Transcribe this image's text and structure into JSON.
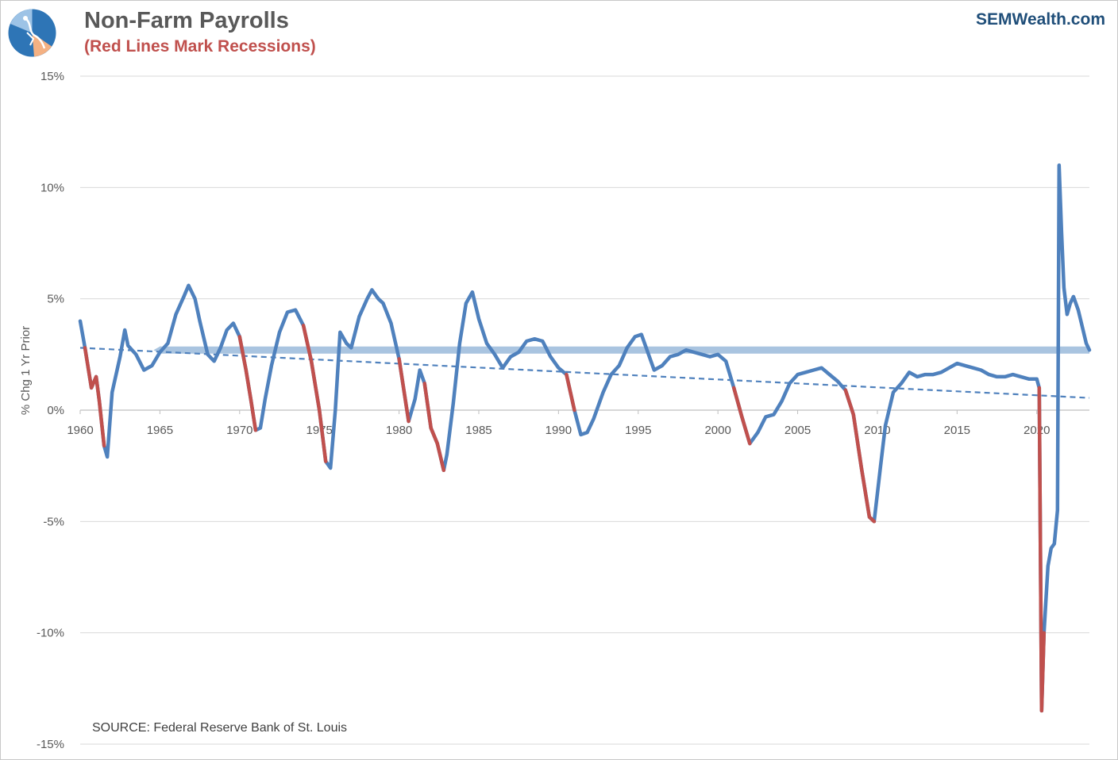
{
  "header": {
    "title": "Non-Farm Payrolls",
    "subtitle": "(Red Lines Mark Recessions)",
    "brand": "SEMWealth.com"
  },
  "colors": {
    "series": "#4f81bd",
    "recession": "#c0504d",
    "band": "#a9c4e0",
    "grid": "#d9d9d9",
    "title": "#595959",
    "brand": "#1f4e79",
    "logo_blue": "#2e75b6",
    "logo_light": "#9dc3e6",
    "logo_orange": "#f4b183"
  },
  "icons": {
    "logo": "semwealth-logo-icon"
  },
  "chart_data": {
    "type": "line",
    "ylabel": "% Chg 1 Yr Prior",
    "xlabel": "",
    "ylim": [
      -15,
      15
    ],
    "xlim": [
      1960,
      2023.3
    ],
    "y_ticks": [
      15,
      10,
      5,
      0,
      -5,
      -10,
      -15
    ],
    "y_tick_labels": [
      "15%",
      "10%",
      "5%",
      "0%",
      "-5%",
      "-10%",
      "-15%"
    ],
    "x_ticks": [
      1960,
      1965,
      1970,
      1975,
      1980,
      1985,
      1990,
      1995,
      2000,
      2005,
      2010,
      2015,
      2020
    ],
    "x_tick_labels": [
      "1960",
      "1965",
      "1970",
      "1975",
      "1980",
      "1985",
      "1990",
      "1995",
      "2000",
      "2005",
      "2010",
      "2015",
      "2020"
    ],
    "grid": "horizontal",
    "annotation": "SOURCE: Federal Reserve Bank of St. Louis",
    "series": [
      {
        "points": [
          [
            1960.0,
            4.0
          ],
          [
            1960.3,
            2.8
          ],
          [
            1960.7,
            1.0
          ],
          [
            1961.0,
            1.5
          ],
          [
            1961.2,
            0.4
          ],
          [
            1961.5,
            -1.6
          ],
          [
            1961.7,
            -2.1
          ],
          [
            1962.0,
            0.8
          ],
          [
            1962.5,
            2.4
          ],
          [
            1962.8,
            3.6
          ],
          [
            1963.0,
            2.9
          ],
          [
            1963.5,
            2.5
          ],
          [
            1964.0,
            1.8
          ],
          [
            1964.5,
            2.0
          ],
          [
            1965.0,
            2.6
          ],
          [
            1965.5,
            3.0
          ],
          [
            1966.0,
            4.3
          ],
          [
            1966.5,
            5.1
          ],
          [
            1966.8,
            5.6
          ],
          [
            1967.2,
            5.0
          ],
          [
            1967.5,
            4.0
          ],
          [
            1968.0,
            2.5
          ],
          [
            1968.4,
            2.2
          ],
          [
            1968.8,
            2.8
          ],
          [
            1969.2,
            3.6
          ],
          [
            1969.6,
            3.9
          ],
          [
            1970.0,
            3.3
          ],
          [
            1970.4,
            1.8
          ],
          [
            1970.7,
            0.5
          ],
          [
            1971.0,
            -0.9
          ],
          [
            1971.3,
            -0.8
          ],
          [
            1971.6,
            0.5
          ],
          [
            1972.0,
            2.0
          ],
          [
            1972.5,
            3.5
          ],
          [
            1973.0,
            4.4
          ],
          [
            1973.5,
            4.5
          ],
          [
            1974.0,
            3.8
          ],
          [
            1974.5,
            2.2
          ],
          [
            1975.0,
            0.0
          ],
          [
            1975.4,
            -2.3
          ],
          [
            1975.7,
            -2.6
          ],
          [
            1976.0,
            0.0
          ],
          [
            1976.3,
            3.5
          ],
          [
            1976.7,
            3.0
          ],
          [
            1977.0,
            2.8
          ],
          [
            1977.5,
            4.2
          ],
          [
            1978.0,
            5.0
          ],
          [
            1978.3,
            5.4
          ],
          [
            1978.7,
            5.0
          ],
          [
            1979.0,
            4.8
          ],
          [
            1979.5,
            3.9
          ],
          [
            1980.0,
            2.3
          ],
          [
            1980.3,
            0.9
          ],
          [
            1980.6,
            -0.5
          ],
          [
            1981.0,
            0.5
          ],
          [
            1981.3,
            1.8
          ],
          [
            1981.6,
            1.2
          ],
          [
            1982.0,
            -0.8
          ],
          [
            1982.4,
            -1.5
          ],
          [
            1982.8,
            -2.7
          ],
          [
            1983.0,
            -2.0
          ],
          [
            1983.4,
            0.3
          ],
          [
            1983.8,
            3.0
          ],
          [
            1984.2,
            4.8
          ],
          [
            1984.6,
            5.3
          ],
          [
            1985.0,
            4.1
          ],
          [
            1985.5,
            3.0
          ],
          [
            1986.0,
            2.5
          ],
          [
            1986.5,
            1.9
          ],
          [
            1987.0,
            2.4
          ],
          [
            1987.5,
            2.6
          ],
          [
            1988.0,
            3.1
          ],
          [
            1988.5,
            3.2
          ],
          [
            1989.0,
            3.1
          ],
          [
            1989.5,
            2.4
          ],
          [
            1990.0,
            1.9
          ],
          [
            1990.5,
            1.6
          ],
          [
            1991.0,
            0.0
          ],
          [
            1991.4,
            -1.1
          ],
          [
            1991.8,
            -1.0
          ],
          [
            1992.2,
            -0.4
          ],
          [
            1992.8,
            0.8
          ],
          [
            1993.3,
            1.6
          ],
          [
            1993.8,
            2.0
          ],
          [
            1994.3,
            2.8
          ],
          [
            1994.8,
            3.3
          ],
          [
            1995.2,
            3.4
          ],
          [
            1995.6,
            2.6
          ],
          [
            1996.0,
            1.8
          ],
          [
            1996.5,
            2.0
          ],
          [
            1997.0,
            2.4
          ],
          [
            1997.5,
            2.5
          ],
          [
            1998.0,
            2.7
          ],
          [
            1998.5,
            2.6
          ],
          [
            1999.0,
            2.5
          ],
          [
            1999.5,
            2.4
          ],
          [
            2000.0,
            2.5
          ],
          [
            2000.5,
            2.2
          ],
          [
            2001.0,
            1.0
          ],
          [
            2001.5,
            -0.3
          ],
          [
            2002.0,
            -1.5
          ],
          [
            2002.5,
            -1.0
          ],
          [
            2003.0,
            -0.3
          ],
          [
            2003.5,
            -0.2
          ],
          [
            2004.0,
            0.4
          ],
          [
            2004.5,
            1.2
          ],
          [
            2005.0,
            1.6
          ],
          [
            2005.5,
            1.7
          ],
          [
            2006.0,
            1.8
          ],
          [
            2006.5,
            1.9
          ],
          [
            2007.0,
            1.6
          ],
          [
            2007.5,
            1.3
          ],
          [
            2008.0,
            0.9
          ],
          [
            2008.5,
            -0.2
          ],
          [
            2009.0,
            -2.6
          ],
          [
            2009.5,
            -4.8
          ],
          [
            2009.8,
            -5.0
          ],
          [
            2010.2,
            -2.5
          ],
          [
            2010.5,
            -0.7
          ],
          [
            2011.0,
            0.8
          ],
          [
            2011.5,
            1.2
          ],
          [
            2012.0,
            1.7
          ],
          [
            2012.5,
            1.5
          ],
          [
            2013.0,
            1.6
          ],
          [
            2013.5,
            1.6
          ],
          [
            2014.0,
            1.7
          ],
          [
            2014.5,
            1.9
          ],
          [
            2015.0,
            2.1
          ],
          [
            2015.5,
            2.0
          ],
          [
            2016.0,
            1.9
          ],
          [
            2016.5,
            1.8
          ],
          [
            2017.0,
            1.6
          ],
          [
            2017.5,
            1.5
          ],
          [
            2018.0,
            1.5
          ],
          [
            2018.5,
            1.6
          ],
          [
            2019.0,
            1.5
          ],
          [
            2019.5,
            1.4
          ],
          [
            2020.0,
            1.4
          ],
          [
            2020.15,
            1.0
          ],
          [
            2020.3,
            -13.5
          ],
          [
            2020.45,
            -10.0
          ],
          [
            2020.7,
            -7.0
          ],
          [
            2020.9,
            -6.2
          ],
          [
            2021.1,
            -6.0
          ],
          [
            2021.3,
            -4.5
          ],
          [
            2021.4,
            11.0
          ],
          [
            2021.55,
            8.0
          ],
          [
            2021.7,
            5.5
          ],
          [
            2021.9,
            4.3
          ],
          [
            2022.1,
            4.8
          ],
          [
            2022.3,
            5.1
          ],
          [
            2022.6,
            4.5
          ],
          [
            2022.9,
            3.6
          ],
          [
            2023.1,
            3.0
          ],
          [
            2023.3,
            2.7
          ]
        ]
      }
    ],
    "recessions": [
      [
        1960.3,
        1961.5
      ],
      [
        1969.9,
        1971.0
      ],
      [
        1973.9,
        1975.4
      ],
      [
        1980.0,
        1980.6
      ],
      [
        1981.5,
        1982.8
      ],
      [
        1990.5,
        1991.3
      ],
      [
        2001.0,
        2002.0
      ],
      [
        2007.9,
        2009.8
      ],
      [
        2020.15,
        2020.45
      ]
    ],
    "band": {
      "y": 2.7,
      "x_start": 1965,
      "x_end": 2023.3
    },
    "trendline": {
      "from": [
        1960,
        2.8
      ],
      "to": [
        2023.3,
        0.55
      ]
    }
  }
}
